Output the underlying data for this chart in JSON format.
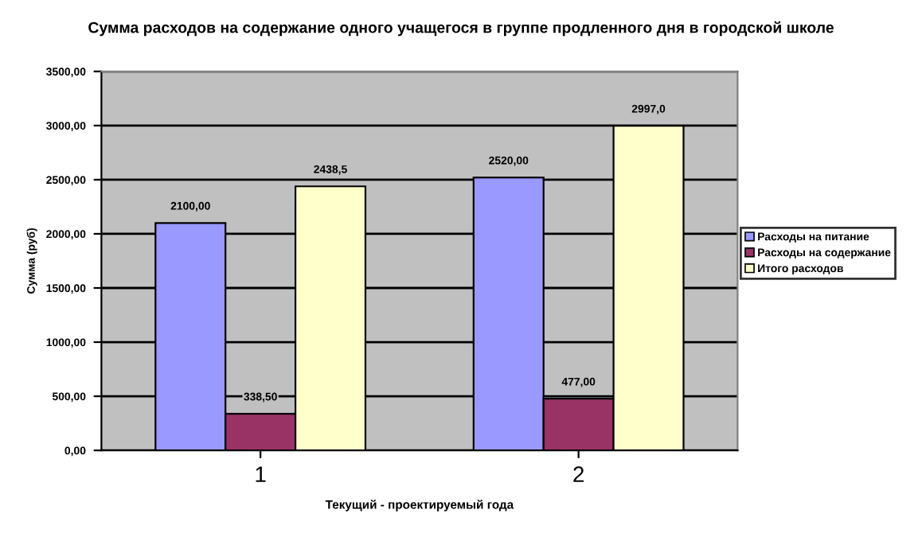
{
  "chart_data": {
    "type": "bar",
    "title": "Сумма расходов на содержание одного учащегося в группе продленного дня в городской школе",
    "xlabel": "Текущий - проектируемый года",
    "ylabel": "Сумма (руб)",
    "categories": [
      "1",
      "2"
    ],
    "series": [
      {
        "name": "Расходы на питание",
        "color": "#9999ff",
        "values": [
          2100,
          2520
        ],
        "value_labels": [
          "2100,00",
          "2520,00"
        ]
      },
      {
        "name": "Расходы на содержание",
        "color": "#993366",
        "values": [
          338.5,
          477
        ],
        "value_labels": [
          "338,50",
          "477,00"
        ]
      },
      {
        "name": "Итого расходов",
        "color": "#ffffcc",
        "values": [
          2438.5,
          2997
        ],
        "value_labels": [
          "2438,5",
          "2997,0"
        ]
      }
    ],
    "ylim": [
      0,
      3500
    ],
    "yticks": [
      {
        "value": 0,
        "label": "0,00"
      },
      {
        "value": 500,
        "label": "500,00"
      },
      {
        "value": 1000,
        "label": "1000,00"
      },
      {
        "value": 1500,
        "label": "1500,00"
      },
      {
        "value": 2000,
        "label": "2000,00"
      },
      {
        "value": 2500,
        "label": "2500,00"
      },
      {
        "value": 3000,
        "label": "3000,00"
      },
      {
        "value": 3500,
        "label": "3500,00"
      }
    ],
    "grid": "y",
    "legend": "right"
  }
}
